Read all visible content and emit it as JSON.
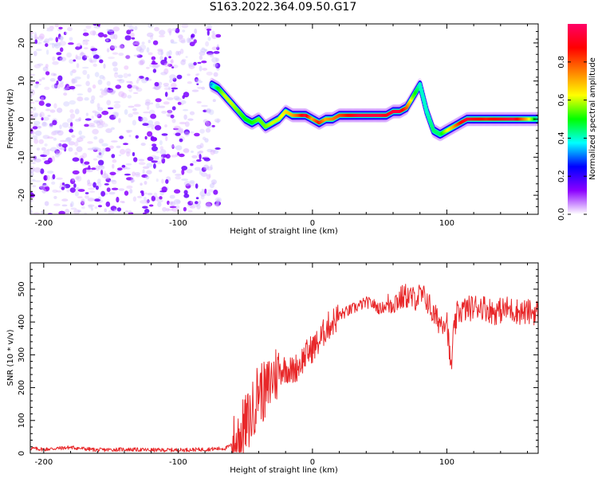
{
  "title": "S163.2022.364.09.50.G17",
  "colors": {
    "snr_line": "#e8282a",
    "axis": "#000000"
  },
  "chart_data": [
    {
      "type": "heatmap",
      "xlabel": "Height of straight line (km)",
      "ylabel": "Frequency (Hz)",
      "xlim": [
        -210,
        168
      ],
      "ylim": [
        -25,
        25
      ],
      "x_ticks": [
        -200,
        -100,
        0,
        100
      ],
      "y_ticks": [
        -20,
        -10,
        0,
        10,
        20
      ],
      "colorbar": {
        "label": "Normalized spectral amplitude",
        "range": [
          0.0,
          1.0
        ],
        "ticks": [
          0.0,
          0.2,
          0.4,
          0.6,
          0.8
        ],
        "colormap": [
          "#ffffff",
          "#8b00ff",
          "#0000ff",
          "#00ffff",
          "#00ff00",
          "#ffff00",
          "#ff7f00",
          "#ff0000",
          "#ff0066"
        ]
      },
      "noise_region": {
        "x_from": -210,
        "x_to": -70,
        "amplitude": 0.05
      },
      "ridge": {
        "x": [
          -75,
          -70,
          -65,
          -60,
          -55,
          -50,
          -45,
          -40,
          -35,
          -30,
          -25,
          -20,
          -15,
          -10,
          -5,
          0,
          5,
          10,
          15,
          20,
          25,
          30,
          35,
          40,
          45,
          50,
          55,
          60,
          65,
          70,
          75,
          80,
          85,
          90,
          95,
          100,
          105,
          110,
          115,
          120,
          130,
          140,
          150,
          160,
          168
        ],
        "freq": [
          9,
          8,
          6,
          4,
          2,
          0,
          -1,
          0,
          -2,
          -1,
          0,
          2,
          1,
          1,
          1,
          0,
          -1,
          0,
          0,
          1,
          1,
          1,
          1,
          1,
          1,
          1,
          1,
          2,
          2,
          3,
          6,
          9,
          2,
          -3,
          -4,
          -3,
          -2,
          -1,
          0,
          0,
          0,
          0,
          0,
          0,
          0
        ],
        "amplitude": [
          0.3,
          0.5,
          0.6,
          0.6,
          0.55,
          0.5,
          0.5,
          0.55,
          0.55,
          0.6,
          0.6,
          0.65,
          0.7,
          0.8,
          0.95,
          0.7,
          0.85,
          0.7,
          0.75,
          0.8,
          0.85,
          0.9,
          0.95,
          0.95,
          0.95,
          0.95,
          0.9,
          0.95,
          0.95,
          0.8,
          0.55,
          0.4,
          0.4,
          0.45,
          0.45,
          0.6,
          0.7,
          0.85,
          0.95,
          0.9,
          0.85,
          0.9,
          0.95,
          0.7,
          0.4
        ]
      }
    },
    {
      "type": "line",
      "xlabel": "Height of straight line (km)",
      "ylabel": "SNR (10 * v/v)",
      "xlim": [
        -210,
        168
      ],
      "ylim": [
        0,
        580
      ],
      "x_ticks": [
        -200,
        -100,
        0,
        100
      ],
      "y_ticks": [
        0,
        100,
        200,
        300,
        400,
        500
      ],
      "series": [
        {
          "x": [
            -210,
            -200,
            -180,
            -160,
            -140,
            -120,
            -100,
            -80,
            -65,
            -58,
            -52,
            -45,
            -40,
            -35,
            -30,
            -25,
            -20,
            -15,
            -10,
            -5,
            0,
            5,
            10,
            15,
            20,
            25,
            30,
            35,
            40,
            45,
            50,
            55,
            60,
            65,
            70,
            75,
            80,
            85,
            90,
            95,
            100,
            103,
            105,
            108,
            115,
            125,
            135,
            145,
            155,
            168
          ],
          "y": [
            15,
            12,
            18,
            10,
            12,
            10,
            10,
            12,
            15,
            30,
            70,
            120,
            200,
            180,
            230,
            250,
            260,
            250,
            270,
            300,
            320,
            340,
            380,
            400,
            420,
            430,
            440,
            450,
            460,
            455,
            440,
            450,
            460,
            470,
            480,
            470,
            480,
            470,
            420,
            400,
            410,
            250,
            360,
            430,
            440,
            450,
            430,
            440,
            430,
            430
          ]
        }
      ]
    }
  ]
}
